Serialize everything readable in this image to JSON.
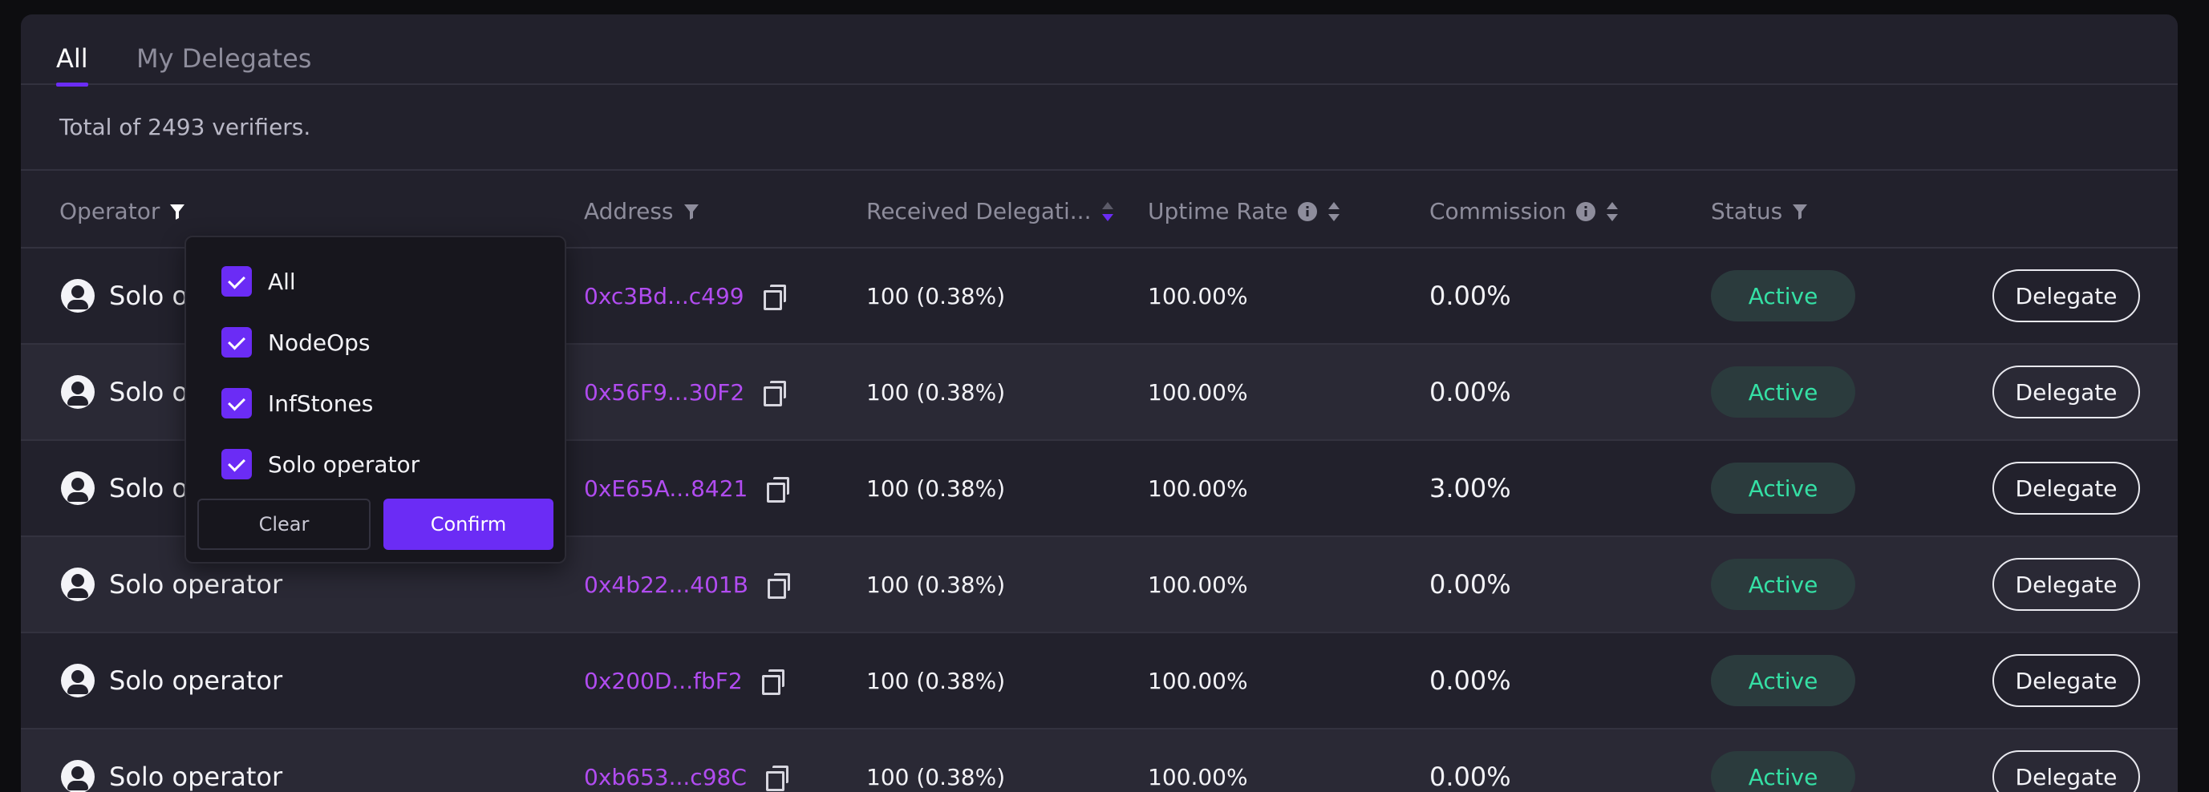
{
  "tabs": [
    {
      "label": "All",
      "active": true
    },
    {
      "label": "My Delegates",
      "active": false
    }
  ],
  "total_text": "Total of 2493 verifiers.",
  "columns": {
    "operator": "Operator",
    "address": "Address",
    "received": "Received Delegati...",
    "uptime": "Uptime Rate",
    "commission": "Commission",
    "status": "Status"
  },
  "rows": [
    {
      "operator": "Solo operator",
      "address": "0xc3Bd...c499",
      "received": "100 (0.38%)",
      "uptime": "100.00%",
      "commission": "0.00%",
      "status": "Active",
      "action": "Delegate"
    },
    {
      "operator": "Solo operator",
      "address": "0x56F9...30F2",
      "received": "100 (0.38%)",
      "uptime": "100.00%",
      "commission": "0.00%",
      "status": "Active",
      "action": "Delegate"
    },
    {
      "operator": "Solo operator",
      "address": "0xE65A...8421",
      "received": "100 (0.38%)",
      "uptime": "100.00%",
      "commission": "3.00%",
      "status": "Active",
      "action": "Delegate"
    },
    {
      "operator": "Solo operator",
      "address": "0x4b22...401B",
      "received": "100 (0.38%)",
      "uptime": "100.00%",
      "commission": "0.00%",
      "status": "Active",
      "action": "Delegate"
    },
    {
      "operator": "Solo operator",
      "address": "0x200D...fbF2",
      "received": "100 (0.38%)",
      "uptime": "100.00%",
      "commission": "0.00%",
      "status": "Active",
      "action": "Delegate"
    },
    {
      "operator": "Solo operator",
      "address": "0xb653...c98C",
      "received": "100 (0.38%)",
      "uptime": "100.00%",
      "commission": "0.00%",
      "status": "Active",
      "action": "Delegate"
    }
  ],
  "filter_dropdown": {
    "options": [
      {
        "label": "All",
        "checked": true
      },
      {
        "label": "NodeOps",
        "checked": true
      },
      {
        "label": "InfStones",
        "checked": true
      },
      {
        "label": "Solo operator",
        "checked": true
      }
    ],
    "clear_label": "Clear",
    "confirm_label": "Confirm"
  },
  "colors": {
    "accent": "#6b2cf5",
    "address": "#b14cf0",
    "status_active": "#35e0a5",
    "card_bg": "#22212c"
  }
}
